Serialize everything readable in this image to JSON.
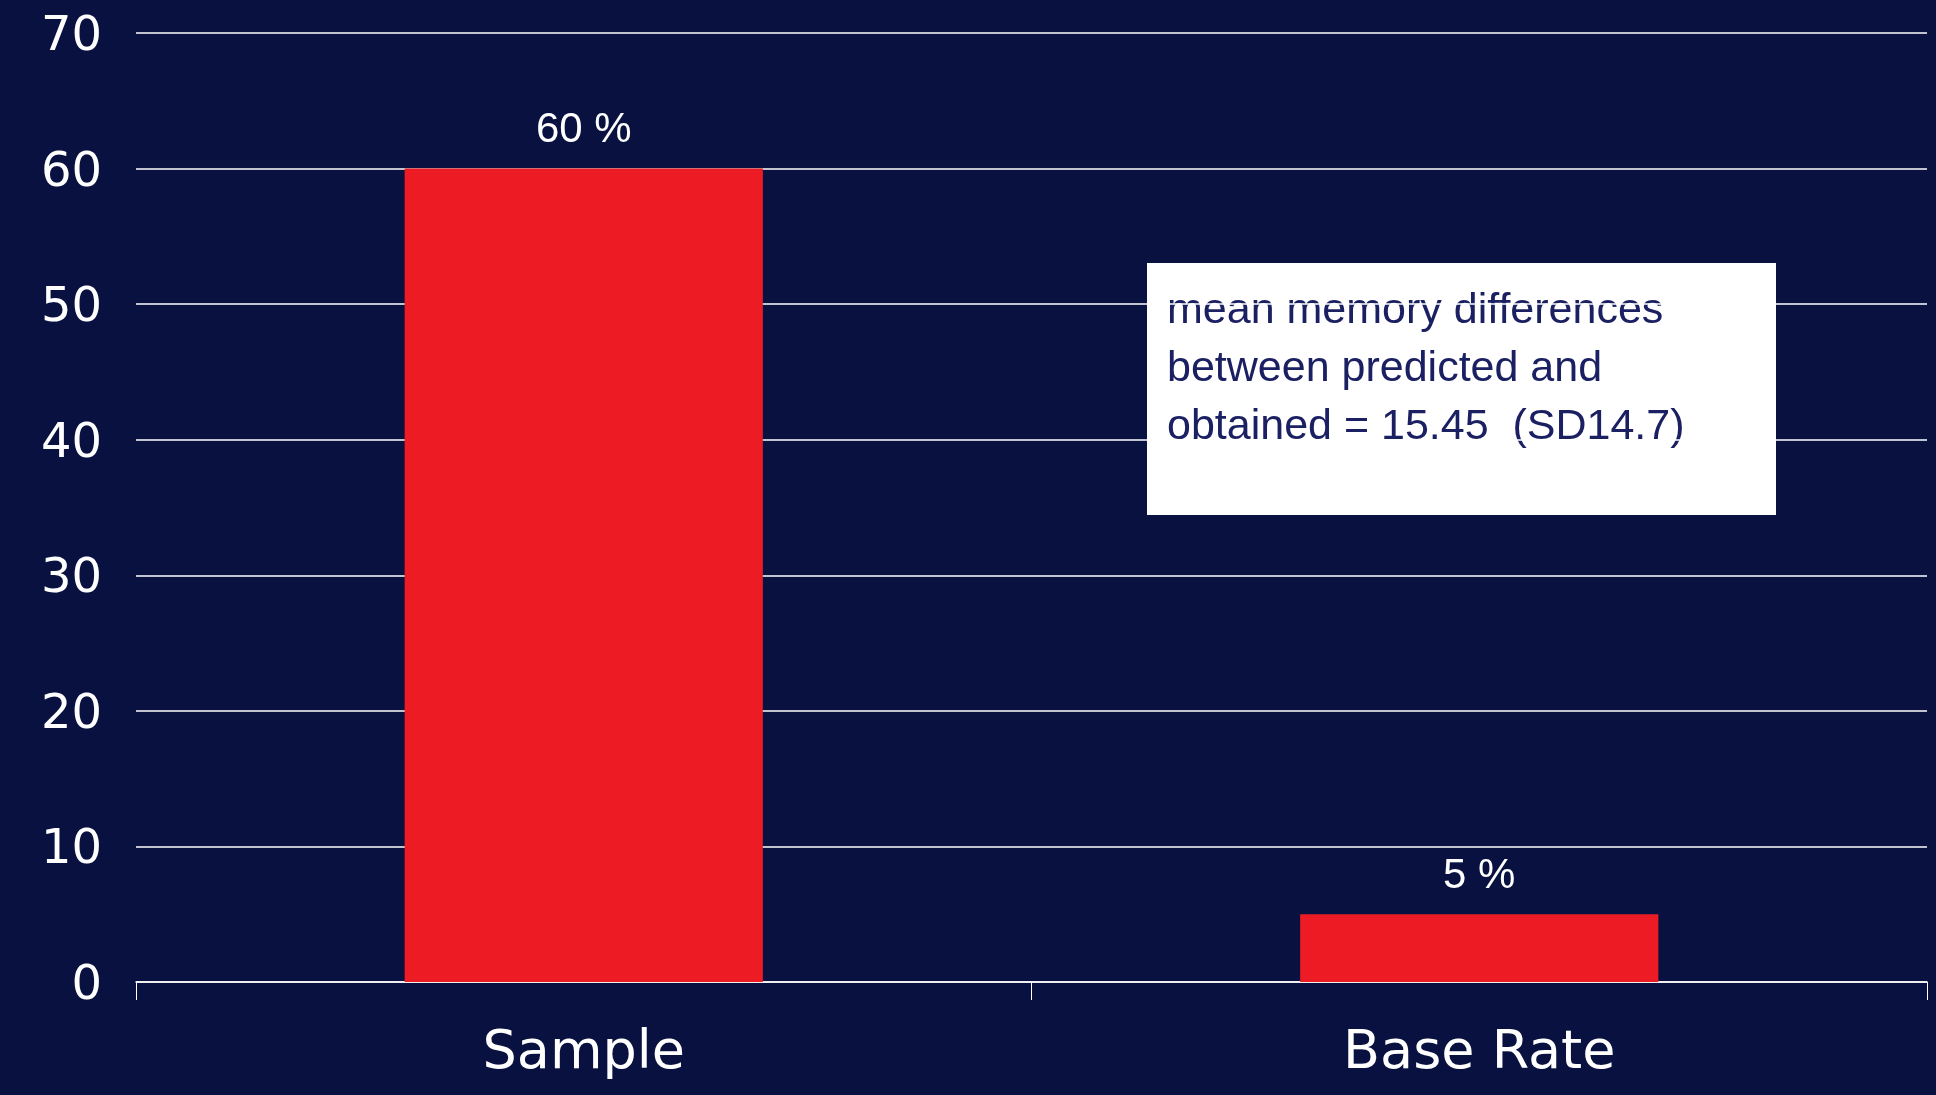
{
  "chart_data": {
    "type": "bar",
    "categories": [
      "Sample",
      "Base Rate"
    ],
    "values": [
      60,
      5
    ],
    "color": "#ed1c24",
    "value_labels": [
      "60 %",
      "5 %"
    ],
    "ylim": [
      0,
      70
    ],
    "yticks": [
      0,
      10,
      20,
      30,
      40,
      50,
      60,
      70
    ],
    "grid": true,
    "annotations": [
      "mean memory differences between predicted and obtained = 15.45  (SD14.7)"
    ]
  }
}
